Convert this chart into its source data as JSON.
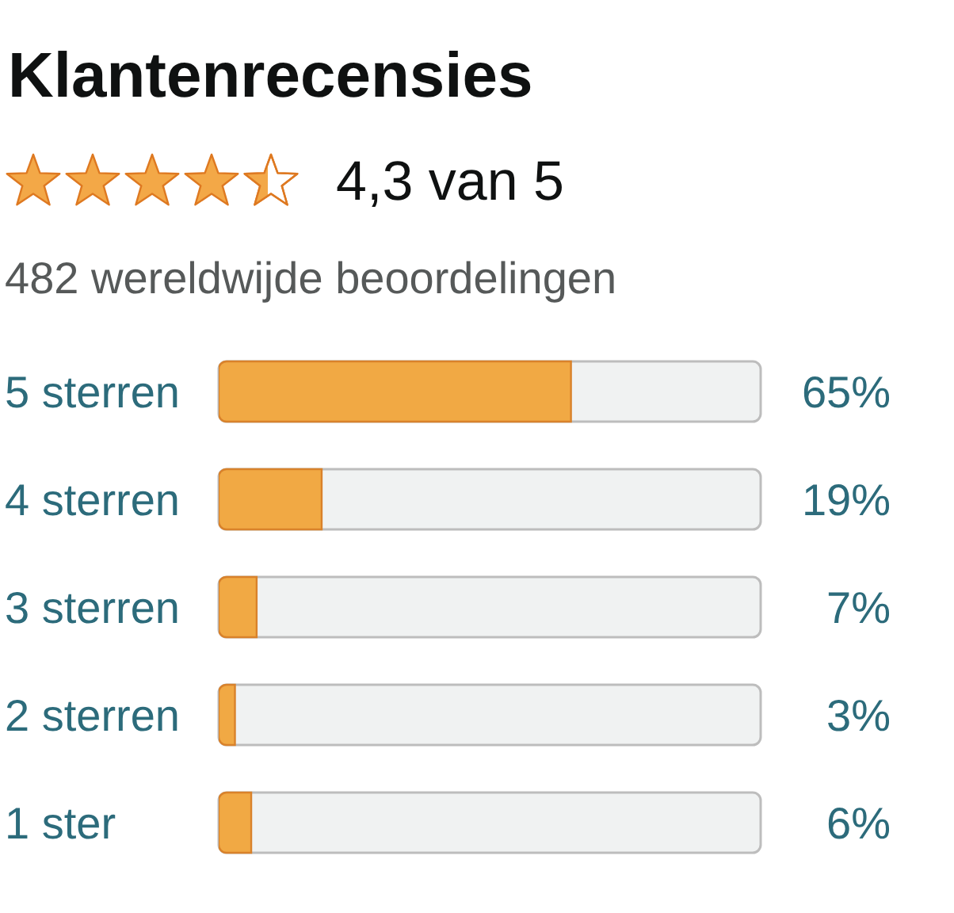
{
  "chart_data": {
    "type": "bar",
    "orientation": "horizontal",
    "title": "Klantenrecensies",
    "subtitle": "4,3 van 5",
    "annotations": [
      "482 wereldwijde beoordelingen"
    ],
    "categories": [
      "5 sterren",
      "4 sterren",
      "3 sterren",
      "2 sterren",
      "1 ster"
    ],
    "values": [
      65,
      19,
      7,
      3,
      6
    ],
    "color": "#f1a944",
    "value_labels": [
      "65%",
      "19%",
      "7%",
      "3%",
      "6%"
    ],
    "xlim": [
      0,
      100
    ],
    "tick_labels": "y"
  }
}
